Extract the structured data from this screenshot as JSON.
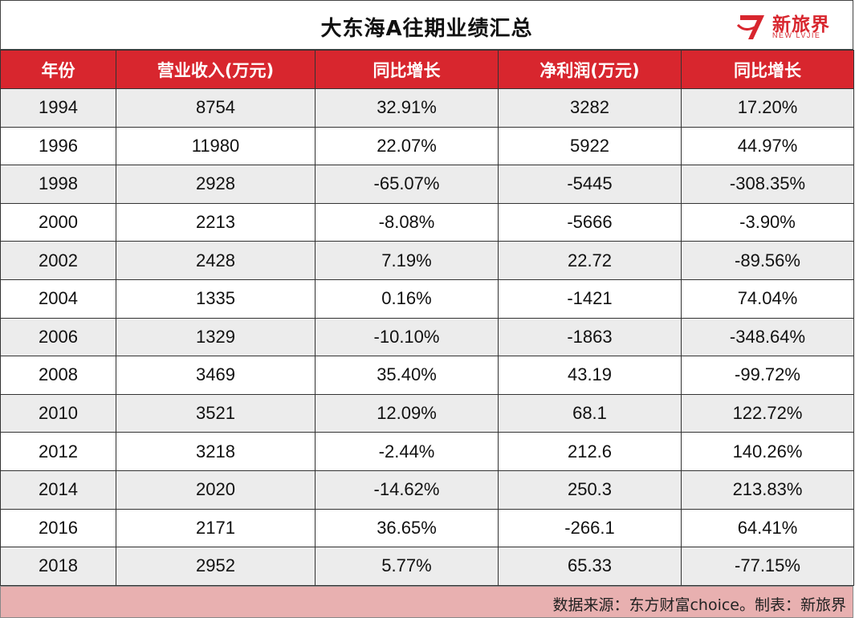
{
  "title": "大东海A往期业绩汇总",
  "logo": {
    "name": "新旅界",
    "subtitle": "NEW LVJIE",
    "brand_color": "#d8262e"
  },
  "table": {
    "headers": [
      "年份",
      "营业收入(万元)",
      "同比增长",
      "净利润(万元)",
      "同比增长"
    ],
    "rows": [
      [
        "1994",
        "8754",
        "32.91%",
        "3282",
        "17.20%"
      ],
      [
        "1996",
        "11980",
        "22.07%",
        "5922",
        "44.97%"
      ],
      [
        "1998",
        "2928",
        "-65.07%",
        "-5445",
        "-308.35%"
      ],
      [
        "2000",
        "2213",
        "-8.08%",
        "-5666",
        "-3.90%"
      ],
      [
        "2002",
        "2428",
        "7.19%",
        "22.72",
        "-89.56%"
      ],
      [
        "2004",
        "1335",
        "0.16%",
        "-1421",
        "74.04%"
      ],
      [
        "2006",
        "1329",
        "-10.10%",
        "-1863",
        "-348.64%"
      ],
      [
        "2008",
        "3469",
        "35.40%",
        "43.19",
        "-99.72%"
      ],
      [
        "2010",
        "3521",
        "12.09%",
        "68.1",
        "122.72%"
      ],
      [
        "2012",
        "3218",
        "-2.44%",
        "212.6",
        "140.26%"
      ],
      [
        "2014",
        "2020",
        "-14.62%",
        "250.3",
        "213.83%"
      ],
      [
        "2016",
        "2171",
        "36.65%",
        "-266.1",
        "64.41%"
      ],
      [
        "2018",
        "2952",
        "5.77%",
        "65.33",
        "-77.15%"
      ]
    ]
  },
  "footer": {
    "source": "数据来源：东方财富choice。制表：新旅界"
  },
  "colors": {
    "header_bg": "#d8262e",
    "stripe": "#ececec",
    "footer_bg": "#e8b0b0"
  }
}
